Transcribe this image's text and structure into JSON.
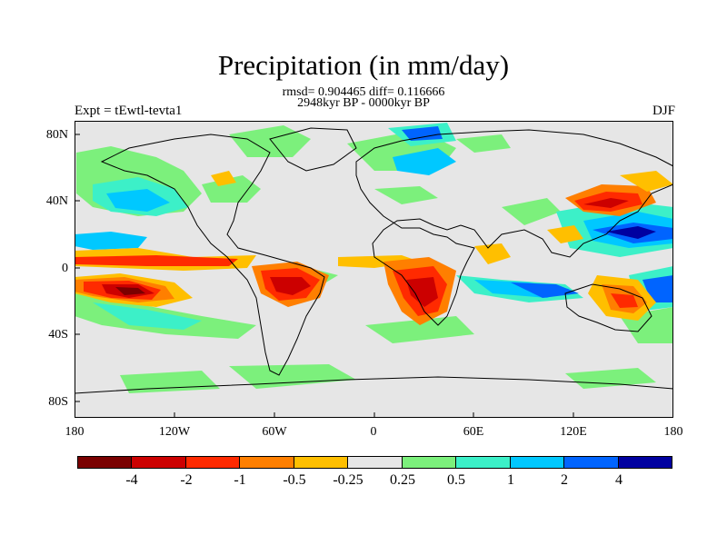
{
  "title": "Precipitation (in mm/day)",
  "stats": "rmsd= 0.904465 diff= 0.116666",
  "period": "2948kyr BP - 0000kyr BP",
  "expt": "Expt = tEwtl-tevta1",
  "season": "DJF",
  "y_ticks": [
    "80N",
    "40N",
    "0",
    "40S",
    "80S"
  ],
  "x_ticks": [
    "180",
    "120W",
    "60W",
    "0",
    "60E",
    "120E",
    "180"
  ],
  "legend": {
    "colors": [
      "#7a0000",
      "#cc0000",
      "#ff2a00",
      "#ff7f00",
      "#ffbf00",
      "#e6e6e6",
      "#7cf07c",
      "#3cf0c8",
      "#00c8ff",
      "#0064ff",
      "#0000a0"
    ],
    "labels": [
      "-4",
      "-2",
      "-1",
      "-0.5",
      "-0.25",
      "0.25",
      "0.5",
      "1",
      "2",
      "4"
    ]
  }
}
